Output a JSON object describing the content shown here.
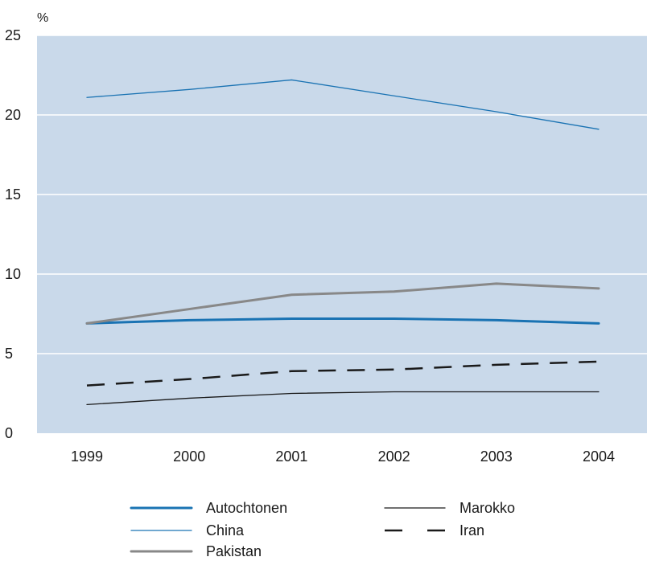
{
  "chart_data": {
    "type": "line",
    "unit_label": "%",
    "categories": [
      "1999",
      "2000",
      "2001",
      "2002",
      "2003",
      "2004"
    ],
    "ylim": [
      0,
      25
    ],
    "yticks": [
      0,
      5,
      10,
      15,
      20,
      25
    ],
    "grid": "horizontal",
    "legend_position": "bottom",
    "series": [
      {
        "name": "Autochtonen",
        "values": [
          6.9,
          7.1,
          7.2,
          7.2,
          7.1,
          6.9
        ],
        "color": "#1a73b3",
        "style": "thick"
      },
      {
        "name": "China",
        "values": [
          21.1,
          21.6,
          22.2,
          21.2,
          20.2,
          19.1
        ],
        "color": "#1a73b3",
        "style": "thin"
      },
      {
        "name": "Pakistan",
        "values": [
          6.9,
          7.8,
          8.7,
          8.9,
          9.4,
          9.1
        ],
        "color": "#888888",
        "style": "thick"
      },
      {
        "name": "Marokko",
        "values": [
          1.8,
          2.2,
          2.5,
          2.6,
          2.6,
          2.6
        ],
        "color": "#1a1a1a",
        "style": "thin"
      },
      {
        "name": "Iran",
        "values": [
          3.0,
          3.4,
          3.9,
          4.0,
          4.3,
          4.5
        ],
        "color": "#1a1a1a",
        "style": "dashed"
      }
    ]
  }
}
